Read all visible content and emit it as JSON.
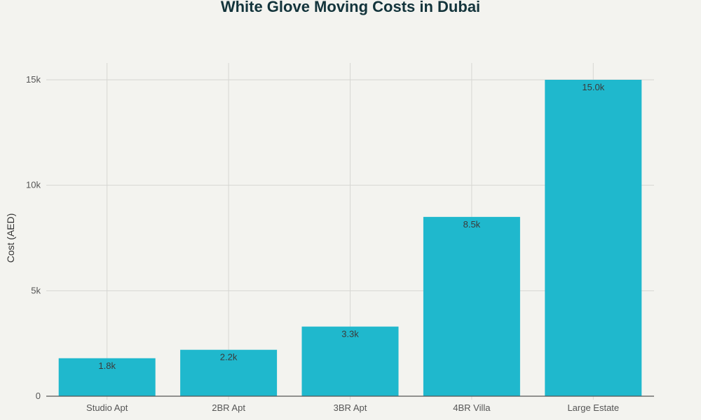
{
  "chart_data": {
    "type": "bar",
    "title": "White Glove Moving Costs in Dubai",
    "xlabel": "",
    "ylabel": "Cost (AED)",
    "categories": [
      "Studio Apt",
      "2BR Apt",
      "3BR Apt",
      "4BR Villa",
      "Large Estate"
    ],
    "values": [
      1800,
      2200,
      3300,
      8500,
      15000
    ],
    "data_labels": [
      "1.8k",
      "2.2k",
      "3.3k",
      "8.5k",
      "15.0k"
    ],
    "yticks": [
      0,
      5000,
      10000,
      15000
    ],
    "ytick_labels": [
      "0",
      "5k",
      "10k",
      "15k"
    ],
    "ylim": [
      0,
      15800
    ],
    "grid": true,
    "bar_color": "#1fb8cd"
  }
}
